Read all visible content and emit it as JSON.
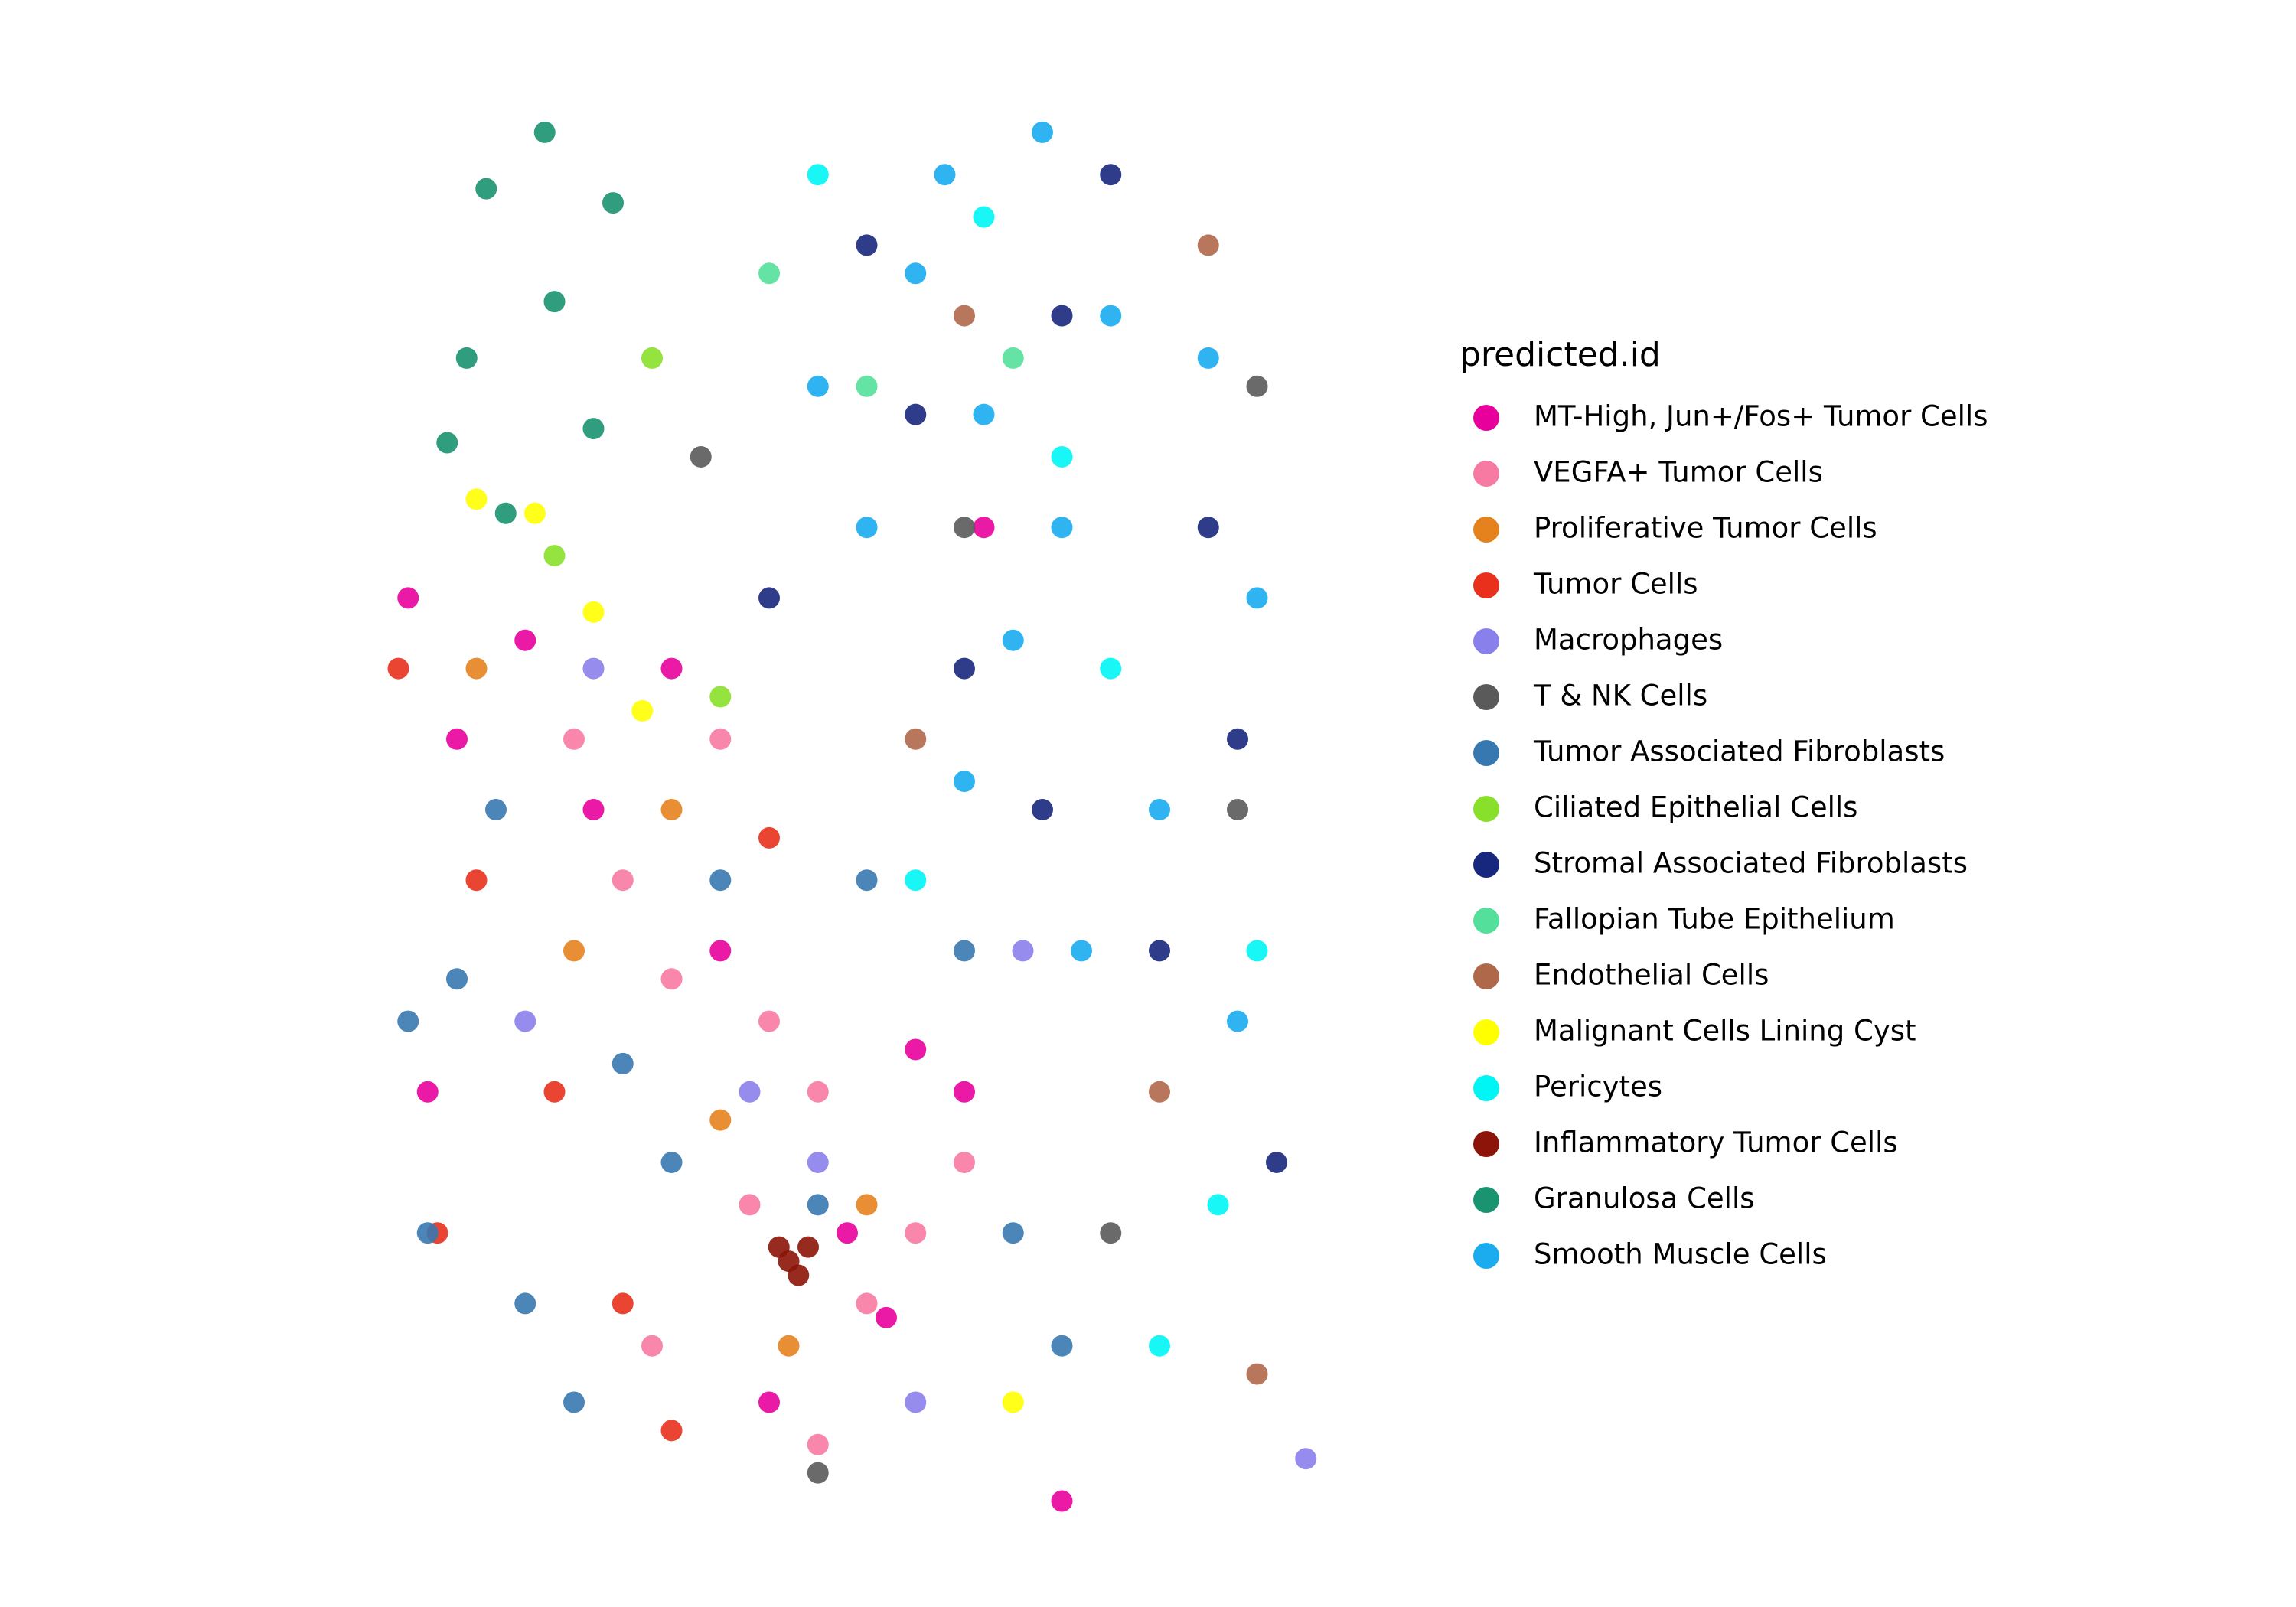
{
  "chart_data": {
    "type": "scatter",
    "legend_title": "predicted.id",
    "legend": "right",
    "xlim": [
      0,
      100
    ],
    "ylim": [
      0,
      100
    ],
    "series": [
      {
        "name": "MT-High, Jun+/Fos+ Tumor Cells",
        "color": "#e8009c",
        "x": [
          3,
          8,
          15,
          22,
          35,
          55,
          60,
          48,
          40,
          70,
          5,
          30,
          52,
          62
        ],
        "y": [
          65,
          55,
          62,
          50,
          40,
          33,
          30,
          20,
          8,
          1,
          30,
          60,
          14,
          70
        ]
      },
      {
        "name": "VEGFA+ Tumor Cells",
        "color": "#f77aa2",
        "x": [
          25,
          30,
          40,
          45,
          38,
          50,
          55,
          45,
          28,
          20,
          35,
          60
        ],
        "y": [
          45,
          38,
          35,
          30,
          22,
          15,
          20,
          5,
          12,
          55,
          55,
          25
        ]
      },
      {
        "name": "Proliferative Tumor Cells",
        "color": "#e6821e",
        "x": [
          20,
          35,
          50,
          30,
          10,
          42
        ],
        "y": [
          40,
          28,
          22,
          50,
          60,
          12
        ]
      },
      {
        "name": "Tumor Cells",
        "color": "#e8301c",
        "x": [
          2,
          10,
          18,
          25,
          40,
          30,
          6
        ],
        "y": [
          60,
          45,
          30,
          15,
          48,
          6,
          20
        ]
      },
      {
        "name": "Macrophages",
        "color": "#8a80ec",
        "x": [
          15,
          38,
          55,
          95,
          66,
          22,
          45
        ],
        "y": [
          35,
          30,
          8,
          4,
          40,
          60,
          25
        ]
      },
      {
        "name": "T & NK Cells",
        "color": "#5a5a5a",
        "x": [
          60,
          88,
          75,
          45,
          90,
          33
        ],
        "y": [
          70,
          50,
          20,
          3,
          80,
          75
        ]
      },
      {
        "name": "Tumor Associated Fibroblasts",
        "color": "#3878b0",
        "x": [
          8,
          5,
          15,
          30,
          45,
          60,
          70,
          20,
          35,
          12,
          50,
          65,
          3,
          25
        ],
        "y": [
          38,
          20,
          15,
          25,
          22,
          40,
          12,
          8,
          45,
          50,
          45,
          20,
          35,
          32
        ]
      },
      {
        "name": "Ciliated Epithelial Cells",
        "color": "#88e02a",
        "x": [
          18,
          35,
          28
        ],
        "y": [
          68,
          58,
          82
        ]
      },
      {
        "name": "Stromal Associated Fibroblasts",
        "color": "#17277d",
        "x": [
          50,
          70,
          85,
          60,
          80,
          92,
          75,
          55,
          88,
          68,
          40
        ],
        "y": [
          90,
          85,
          70,
          60,
          40,
          25,
          95,
          78,
          55,
          50,
          65
        ]
      },
      {
        "name": "Fallopian Tube Epithelium",
        "color": "#54e09a",
        "x": [
          50,
          40,
          65
        ],
        "y": [
          80,
          88,
          82
        ]
      },
      {
        "name": "Endothelial Cells",
        "color": "#b0684a",
        "x": [
          55,
          80,
          90,
          85,
          60
        ],
        "y": [
          55,
          30,
          10,
          90,
          85
        ]
      },
      {
        "name": "Malignant Cells Lining Cyst",
        "color": "#ffff00",
        "x": [
          16,
          22,
          27,
          65,
          10
        ],
        "y": [
          71,
          64,
          57,
          8,
          72
        ]
      },
      {
        "name": "Pericytes",
        "color": "#00f5f5",
        "x": [
          45,
          70,
          90,
          80,
          55,
          62,
          75,
          86
        ],
        "y": [
          95,
          75,
          40,
          12,
          45,
          92,
          60,
          22
        ]
      },
      {
        "name": "Inflammatory Tumor Cells",
        "color": "#8c1408",
        "x": [
          42,
          44,
          43,
          41
        ],
        "y": [
          18,
          19,
          17,
          19
        ]
      },
      {
        "name": "Granulosa Cells",
        "color": "#1a9470",
        "x": [
          17,
          11,
          24,
          9,
          7,
          13,
          22,
          18
        ],
        "y": [
          98,
          94,
          93,
          82,
          76,
          71,
          77,
          86
        ]
      },
      {
        "name": "Smooth Muscle Cells",
        "color": "#1aacef",
        "x": [
          55,
          62,
          58,
          70,
          50,
          75,
          85,
          65,
          80,
          90,
          45,
          72,
          60,
          88,
          68
        ],
        "y": [
          88,
          78,
          95,
          70,
          70,
          85,
          82,
          62,
          50,
          65,
          80,
          40,
          52,
          35,
          98
        ]
      }
    ]
  }
}
